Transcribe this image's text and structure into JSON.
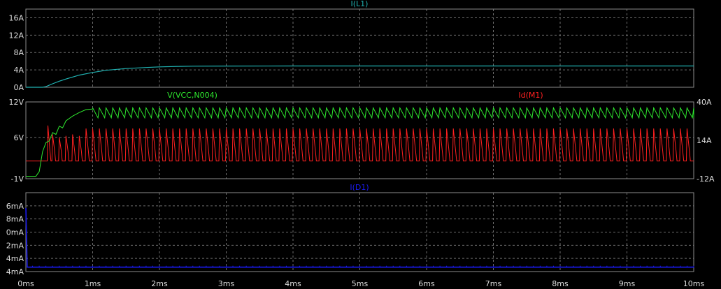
{
  "chart_data": [
    {
      "type": "line",
      "series": [
        {
          "name": "I(L1)",
          "color": "#20b2b2"
        }
      ],
      "ylim": [
        0,
        18
      ],
      "yticks": [
        {
          "v": 0,
          "t": "0A"
        },
        {
          "v": 4,
          "t": "4A"
        },
        {
          "v": 8,
          "t": "8A"
        },
        {
          "v": 12,
          "t": "12A"
        },
        {
          "v": 16,
          "t": "16A"
        }
      ],
      "traces": {
        "I(L1)": {
          "x": [
            0,
            0.25,
            0.3,
            0.4,
            0.5,
            0.6,
            0.8,
            1.0,
            1.2,
            1.5,
            1.8,
            2.0,
            2.3,
            2.5,
            3.0,
            4.0,
            5.0,
            6.0,
            7.0,
            8.0,
            9.0,
            10.0
          ],
          "y": [
            0,
            0,
            0.15,
            0.8,
            1.4,
            1.9,
            2.8,
            3.4,
            3.9,
            4.3,
            4.55,
            4.7,
            4.8,
            4.85,
            4.88,
            4.9,
            4.9,
            4.9,
            4.9,
            4.9,
            4.9,
            4.9
          ]
        }
      }
    },
    {
      "type": "line",
      "series": [
        {
          "name": "V(VCC,N004)",
          "color": "#2ee82e",
          "axis": "left"
        },
        {
          "name": "Id(M1)",
          "color": "#ff2020",
          "axis": "right"
        }
      ],
      "ylim_left": [
        -1,
        12
      ],
      "ylim_right": [
        -12,
        40
      ],
      "yticks_left": [
        {
          "v": -1,
          "t": "-1V"
        },
        {
          "v": 6,
          "t": "6V"
        },
        {
          "v": 12,
          "t": "12V"
        }
      ],
      "yticks_right": [
        {
          "v": -12,
          "t": "-12A"
        },
        {
          "v": 14,
          "t": "14A"
        },
        {
          "v": 40,
          "t": "40A"
        }
      ],
      "traces": {
        "V(VCC,N004)": {
          "startup": {
            "x": [
              0,
              0.14,
              0.15,
              0.2,
              0.25,
              0.3,
              0.35,
              0.4,
              0.45,
              0.5,
              0.55,
              0.6,
              0.7,
              0.8,
              0.9,
              1.0
            ],
            "y": [
              -0.6,
              -0.6,
              -0.6,
              0.2,
              3.6,
              5.1,
              5.4,
              6.8,
              6.5,
              7.9,
              7.6,
              8.8,
              9.6,
              10.2,
              10.7,
              10.8
            ]
          },
          "steady": {
            "period_ms": 0.1,
            "from_ms": 1.0,
            "min": 9.3,
            "max": 11.0
          }
        },
        "Id(M1)": {
          "baseline": 0,
          "period_ms": 0.1,
          "first_ms": 0.3,
          "peak_points": [
            {
              "x": 0.33,
              "y": 24
            },
            {
              "x": 0.4,
              "y": 18
            },
            {
              "x": 0.5,
              "y": 16
            },
            {
              "x": 0.6,
              "y": 17
            },
            {
              "x": 0.7,
              "y": 18
            },
            {
              "x": 0.8,
              "y": 17
            }
          ],
          "steady_peak": 22,
          "steady_base": 7
        }
      }
    },
    {
      "type": "line",
      "series": [
        {
          "name": "I(D1)",
          "color": "#1a1aee"
        }
      ],
      "ylim": [
        -26,
        10
      ],
      "yticks": [
        {
          "v": -26,
          "t": "4mA"
        },
        {
          "v": -20,
          "t": "4mA"
        },
        {
          "v": -14,
          "t": "2mA"
        },
        {
          "v": -8,
          "t": "0mA"
        },
        {
          "v": -2,
          "t": "8mA"
        },
        {
          "v": 4,
          "t": "6mA"
        }
      ],
      "traces": {
        "I(D1)": {
          "spike": {
            "x": 0.0,
            "y": 3
          },
          "steady": -24
        }
      }
    }
  ],
  "x_axis": {
    "min": 0,
    "max": 10,
    "ticks": [
      "0ms",
      "1ms",
      "2ms",
      "3ms",
      "4ms",
      "5ms",
      "6ms",
      "7ms",
      "8ms",
      "9ms",
      "10ms"
    ]
  },
  "grid": true
}
